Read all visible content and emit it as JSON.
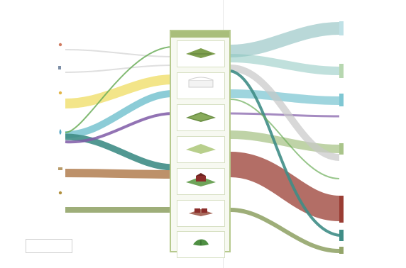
{
  "panel": {
    "header": ""
  },
  "labels": {
    "callout": "",
    "legend": "",
    "footnote": ""
  },
  "colors": {
    "yellow": "#f2e27c",
    "blue": "#7fc7d3",
    "sage": "#a9c48a",
    "green": "#6cae5a",
    "teal": "#3f8d86",
    "brown": "#b6855a",
    "red": "#9a3d33",
    "olive": "#94a56a",
    "violet": "#7f5aa7",
    "gray": "#cfcfcf"
  },
  "icons": [
    "stone-icon",
    "fork-icon",
    "wheat-icon",
    "water-drop-icon",
    "cart-icon",
    "grain-icon",
    "land-icon",
    "greenhouse-icon",
    "field-icon",
    "farm-icon",
    "leaf-icon"
  ]
}
